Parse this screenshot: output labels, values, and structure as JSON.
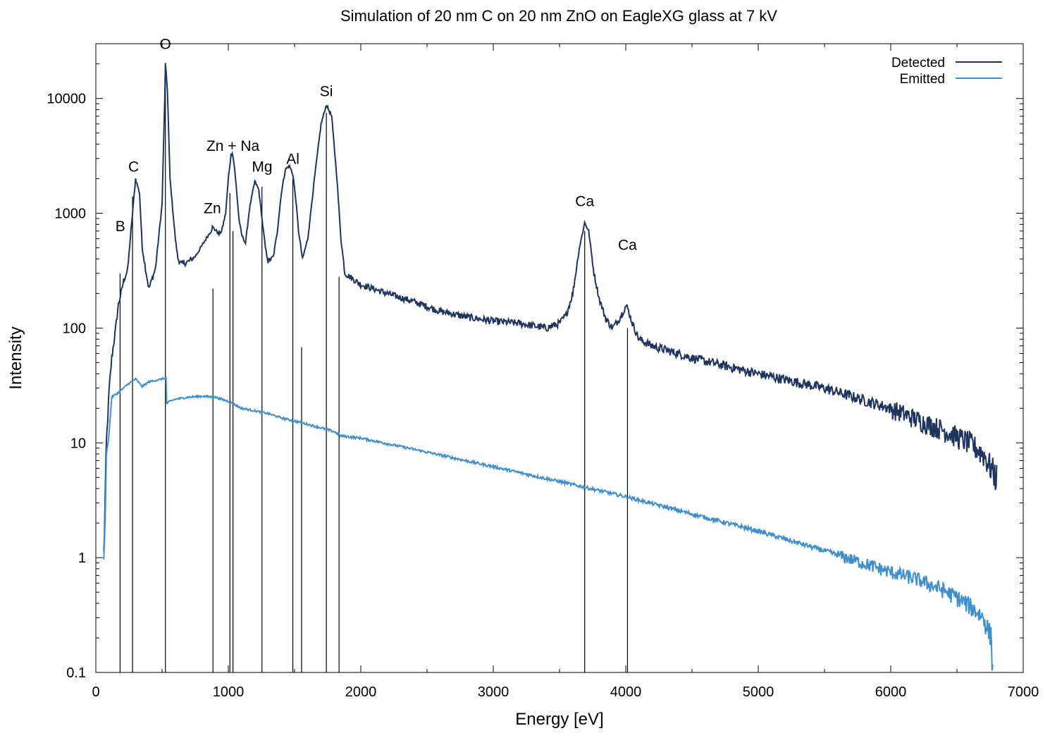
{
  "chart_data": {
    "type": "line",
    "title": "Simulation of 20 nm C on 20 nm ZnO on EagleXG glass at 7 kV",
    "xlabel": "Energy [eV]",
    "ylabel": "Intensity",
    "xlim": [
      0,
      7000
    ],
    "ylim": [
      0.1,
      30000
    ],
    "yscale": "log",
    "grid": false,
    "legend_position": "top-right",
    "x_ticks": [
      "0",
      "1000",
      "2000",
      "3000",
      "4000",
      "5000",
      "6000",
      "7000"
    ],
    "y_ticks": [
      "0.1",
      "1",
      "10",
      "100",
      "1000",
      "10000"
    ],
    "colors": {
      "detected": "#1f3560",
      "emitted": "#3f8fd0",
      "lines": "#000000"
    },
    "series": [
      {
        "name": "Detected",
        "x": [
          60,
          80,
          100,
          120,
          150,
          170,
          190,
          210,
          240,
          260,
          277,
          300,
          330,
          350,
          400,
          450,
          500,
          520,
          525,
          540,
          560,
          600,
          620,
          650,
          700,
          750,
          800,
          850,
          870,
          880,
          900,
          930,
          950,
          980,
          1000,
          1020,
          1030,
          1045,
          1060,
          1080,
          1100,
          1130,
          1160,
          1200,
          1230,
          1254,
          1280,
          1300,
          1340,
          1370,
          1400,
          1430,
          1460,
          1487,
          1510,
          1530,
          1560,
          1600,
          1650,
          1700,
          1740,
          1780,
          1820,
          1850,
          1880,
          2000,
          2200,
          2400,
          2600,
          2800,
          3000,
          3200,
          3400,
          3500,
          3550,
          3600,
          3650,
          3690,
          3720,
          3760,
          3800,
          3850,
          3900,
          3950,
          4000,
          4013,
          4050,
          4100,
          4200,
          4500,
          5000,
          5500,
          6000,
          6200,
          6400,
          6600,
          6700,
          6800
        ],
        "values": [
          1,
          10,
          28,
          55,
          100,
          160,
          200,
          260,
          320,
          600,
          1000,
          2000,
          1500,
          500,
          220,
          330,
          1200,
          10000,
          20000,
          12000,
          2000,
          600,
          400,
          360,
          380,
          420,
          520,
          650,
          700,
          760,
          720,
          660,
          700,
          1000,
          2000,
          3200,
          3400,
          2600,
          1700,
          900,
          650,
          550,
          1100,
          1900,
          1600,
          900,
          500,
          380,
          420,
          700,
          1500,
          2400,
          2600,
          2200,
          1300,
          700,
          400,
          600,
          2000,
          6000,
          8800,
          7000,
          2000,
          600,
          300,
          240,
          200,
          170,
          140,
          125,
          115,
          110,
          100,
          110,
          130,
          200,
          500,
          830,
          700,
          300,
          180,
          120,
          100,
          120,
          155,
          150,
          110,
          80,
          70,
          55,
          40,
          30,
          20,
          16,
          13,
          10,
          8,
          5
        ]
      },
      {
        "name": "Emitted",
        "x": [
          60,
          70,
          80,
          100,
          120,
          180,
          250,
          300,
          350,
          400,
          450,
          500,
          530,
          535,
          560,
          600,
          700,
          800,
          900,
          1000,
          1100,
          1200,
          1300,
          1400,
          1500,
          1600,
          1700,
          1800,
          1850,
          2000,
          2500,
          3000,
          3500,
          4000,
          4500,
          5000,
          5500,
          6000,
          6200,
          6400,
          6500,
          6600,
          6700,
          6760,
          6770
        ],
        "values": [
          1,
          2,
          8,
          12,
          25,
          28,
          33,
          36,
          31,
          34,
          35,
          36,
          37,
          22,
          23,
          24,
          25,
          25.5,
          25,
          23,
          20,
          19,
          18,
          16.5,
          15.5,
          14.5,
          13.5,
          12.5,
          11.5,
          11,
          8.3,
          6.2,
          4.6,
          3.4,
          2.4,
          1.7,
          1.15,
          0.75,
          0.65,
          0.52,
          0.45,
          0.38,
          0.3,
          0.2,
          0.1
        ]
      }
    ],
    "characteristic_lines": [
      {
        "x": 183,
        "value": 300
      },
      {
        "x": 277,
        "value": 1400
      },
      {
        "x": 525,
        "value": 18000
      },
      {
        "x": 884,
        "value": 220
      },
      {
        "x": 1012,
        "value": 1500
      },
      {
        "x": 1035,
        "value": 700
      },
      {
        "x": 1254,
        "value": 1700
      },
      {
        "x": 1487,
        "value": 2000
      },
      {
        "x": 1553,
        "value": 68
      },
      {
        "x": 1740,
        "value": 7500
      },
      {
        "x": 1836,
        "value": 280
      },
      {
        "x": 3690,
        "value": 700
      },
      {
        "x": 4013,
        "value": 100
      }
    ],
    "annotations": [
      {
        "text": "B",
        "x": 185,
        "y": 700
      },
      {
        "text": "C",
        "x": 285,
        "y": 2300
      },
      {
        "text": "O",
        "x": 525,
        "y": 27000
      },
      {
        "text": "Zn",
        "x": 880,
        "y": 1000
      },
      {
        "text": "Zn + Na",
        "x": 1035,
        "y": 3500
      },
      {
        "text": "Mg",
        "x": 1255,
        "y": 2300
      },
      {
        "text": "Al",
        "x": 1487,
        "y": 2700
      },
      {
        "text": "Si",
        "x": 1740,
        "y": 10500
      },
      {
        "text": "Ca",
        "x": 3690,
        "y": 1150
      },
      {
        "text": "Ca",
        "x": 4013,
        "y": 480
      }
    ]
  }
}
